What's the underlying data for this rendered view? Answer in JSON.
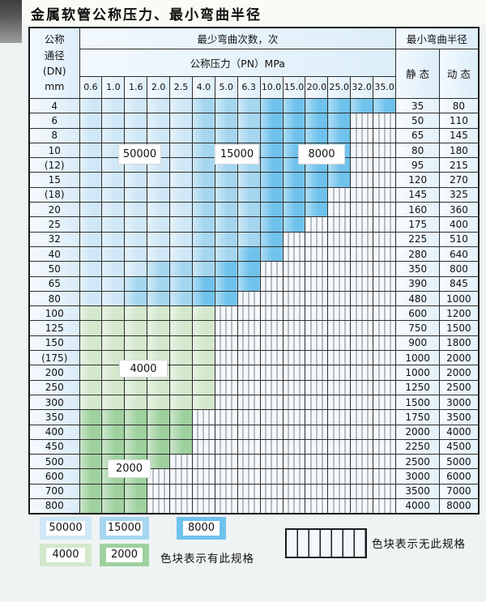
{
  "title": "金属软管公称压力、最小弯曲半径",
  "table": {
    "header": {
      "dn_lines": [
        "公称",
        "通径",
        "(DN)",
        "mm"
      ],
      "bend_cycles": "最少弯曲次数，次",
      "pressure_group": "公称压力（PN）MPa",
      "min_bend_radius": "最小弯曲半径",
      "static_label": "静 态",
      "dynamic_label": "动 态",
      "pressures": [
        "0.6",
        "1.0",
        "1.6",
        "2.0",
        "2.5",
        "4.0",
        "5.0",
        "6.3",
        "10.0",
        "15.0",
        "20.0",
        "25.0",
        "32.0",
        "35.0"
      ]
    },
    "rows": [
      {
        "dn": "4",
        "static": "35",
        "dynamic": "80",
        "cells": [
          "50000",
          "50000",
          "50000",
          "50000",
          "50000",
          "15000",
          "15000",
          "15000",
          "8000",
          "8000",
          "8000",
          "8000",
          "8000",
          "8000"
        ]
      },
      {
        "dn": "6",
        "static": "50",
        "dynamic": "110",
        "cells": [
          "50000",
          "50000",
          "50000",
          "50000",
          "50000",
          "15000",
          "15000",
          "15000",
          "8000",
          "8000",
          "8000",
          "8000",
          "none",
          "none"
        ]
      },
      {
        "dn": "8",
        "static": "65",
        "dynamic": "145",
        "cells": [
          "50000",
          "50000",
          "50000",
          "50000",
          "50000",
          "15000",
          "15000",
          "15000",
          "8000",
          "8000",
          "8000",
          "8000",
          "none",
          "none"
        ]
      },
      {
        "dn": "10",
        "static": "80",
        "dynamic": "180",
        "cells": [
          "50000",
          "50000",
          "50000",
          "50000",
          "50000",
          "15000",
          "15000",
          "15000",
          "8000",
          "8000",
          "8000",
          "8000",
          "none",
          "none"
        ]
      },
      {
        "dn": "(12)",
        "static": "95",
        "dynamic": "215",
        "cells": [
          "50000",
          "50000",
          "50000",
          "50000",
          "50000",
          "15000",
          "15000",
          "15000",
          "8000",
          "8000",
          "8000",
          "8000",
          "none",
          "none"
        ]
      },
      {
        "dn": "15",
        "static": "120",
        "dynamic": "270",
        "cells": [
          "50000",
          "50000",
          "50000",
          "50000",
          "50000",
          "15000",
          "15000",
          "15000",
          "8000",
          "8000",
          "8000",
          "8000",
          "none",
          "none"
        ]
      },
      {
        "dn": "(18)",
        "static": "145",
        "dynamic": "325",
        "cells": [
          "50000",
          "50000",
          "50000",
          "50000",
          "50000",
          "15000",
          "15000",
          "15000",
          "8000",
          "8000",
          "8000",
          "none",
          "none",
          "none"
        ]
      },
      {
        "dn": "20",
        "static": "160",
        "dynamic": "360",
        "cells": [
          "50000",
          "50000",
          "50000",
          "50000",
          "50000",
          "15000",
          "15000",
          "15000",
          "8000",
          "8000",
          "8000",
          "none",
          "none",
          "none"
        ]
      },
      {
        "dn": "25",
        "static": "175",
        "dynamic": "400",
        "cells": [
          "50000",
          "50000",
          "50000",
          "50000",
          "50000",
          "15000",
          "15000",
          "15000",
          "8000",
          "8000",
          "none",
          "none",
          "none",
          "none"
        ]
      },
      {
        "dn": "32",
        "static": "225",
        "dynamic": "510",
        "cells": [
          "50000",
          "50000",
          "50000",
          "50000",
          "50000",
          "15000",
          "15000",
          "15000",
          "8000",
          "none",
          "none",
          "none",
          "none",
          "none"
        ]
      },
      {
        "dn": "40",
        "static": "280",
        "dynamic": "640",
        "cells": [
          "50000",
          "50000",
          "50000",
          "50000",
          "50000",
          "15000",
          "15000",
          "8000",
          "8000",
          "none",
          "none",
          "none",
          "none",
          "none"
        ]
      },
      {
        "dn": "50",
        "static": "350",
        "dynamic": "800",
        "cells": [
          "50000",
          "50000",
          "50000",
          "15000",
          "15000",
          "15000",
          "8000",
          "8000",
          "none",
          "none",
          "none",
          "none",
          "none",
          "none"
        ]
      },
      {
        "dn": "65",
        "static": "390",
        "dynamic": "845",
        "cells": [
          "50000",
          "50000",
          "15000",
          "15000",
          "15000",
          "8000",
          "8000",
          "8000",
          "none",
          "none",
          "none",
          "none",
          "none",
          "none"
        ]
      },
      {
        "dn": "80",
        "static": "480",
        "dynamic": "1000",
        "cells": [
          "50000",
          "50000",
          "15000",
          "15000",
          "15000",
          "8000",
          "8000",
          "none",
          "none",
          "none",
          "none",
          "none",
          "none",
          "none"
        ]
      },
      {
        "dn": "100",
        "static": "600",
        "dynamic": "1200",
        "cells": [
          "4000",
          "4000",
          "4000",
          "4000",
          "4000",
          "4000",
          "none",
          "none",
          "none",
          "none",
          "none",
          "none",
          "none",
          "none"
        ]
      },
      {
        "dn": "125",
        "static": "750",
        "dynamic": "1500",
        "cells": [
          "4000",
          "4000",
          "4000",
          "4000",
          "4000",
          "4000",
          "none",
          "none",
          "none",
          "none",
          "none",
          "none",
          "none",
          "none"
        ]
      },
      {
        "dn": "150",
        "static": "900",
        "dynamic": "1800",
        "cells": [
          "4000",
          "4000",
          "4000",
          "4000",
          "4000",
          "4000",
          "none",
          "none",
          "none",
          "none",
          "none",
          "none",
          "none",
          "none"
        ]
      },
      {
        "dn": "(175)",
        "static": "1000",
        "dynamic": "2000",
        "cells": [
          "4000",
          "4000",
          "4000",
          "4000",
          "4000",
          "4000",
          "none",
          "none",
          "none",
          "none",
          "none",
          "none",
          "none",
          "none"
        ]
      },
      {
        "dn": "200",
        "static": "1000",
        "dynamic": "2000",
        "cells": [
          "4000",
          "4000",
          "4000",
          "4000",
          "4000",
          "4000",
          "none",
          "none",
          "none",
          "none",
          "none",
          "none",
          "none",
          "none"
        ]
      },
      {
        "dn": "250",
        "static": "1250",
        "dynamic": "2500",
        "cells": [
          "4000",
          "4000",
          "4000",
          "4000",
          "4000",
          "4000",
          "none",
          "none",
          "none",
          "none",
          "none",
          "none",
          "none",
          "none"
        ]
      },
      {
        "dn": "300",
        "static": "1500",
        "dynamic": "3000",
        "cells": [
          "4000",
          "4000",
          "4000",
          "4000",
          "4000",
          "4000",
          "none",
          "none",
          "none",
          "none",
          "none",
          "none",
          "none",
          "none"
        ]
      },
      {
        "dn": "350",
        "static": "1750",
        "dynamic": "3500",
        "cells": [
          "2000",
          "2000",
          "2000",
          "2000",
          "2000",
          "none",
          "none",
          "none",
          "none",
          "none",
          "none",
          "none",
          "none",
          "none"
        ]
      },
      {
        "dn": "400",
        "static": "2000",
        "dynamic": "4000",
        "cells": [
          "2000",
          "2000",
          "2000",
          "2000",
          "2000",
          "none",
          "none",
          "none",
          "none",
          "none",
          "none",
          "none",
          "none",
          "none"
        ]
      },
      {
        "dn": "450",
        "static": "2250",
        "dynamic": "4500",
        "cells": [
          "2000",
          "2000",
          "2000",
          "2000",
          "2000",
          "none",
          "none",
          "none",
          "none",
          "none",
          "none",
          "none",
          "none",
          "none"
        ]
      },
      {
        "dn": "500",
        "static": "2500",
        "dynamic": "5000",
        "cells": [
          "2000",
          "2000",
          "2000",
          "2000",
          "none",
          "none",
          "none",
          "none",
          "none",
          "none",
          "none",
          "none",
          "none",
          "none"
        ]
      },
      {
        "dn": "600",
        "static": "3000",
        "dynamic": "6000",
        "cells": [
          "2000",
          "2000",
          "2000",
          "none",
          "none",
          "none",
          "none",
          "none",
          "none",
          "none",
          "none",
          "none",
          "none",
          "none"
        ]
      },
      {
        "dn": "700",
        "static": "3500",
        "dynamic": "7000",
        "cells": [
          "2000",
          "2000",
          "2000",
          "none",
          "none",
          "none",
          "none",
          "none",
          "none",
          "none",
          "none",
          "none",
          "none",
          "none"
        ]
      },
      {
        "dn": "800",
        "static": "4000",
        "dynamic": "8000",
        "cells": [
          "2000",
          "2000",
          "2000",
          "none",
          "none",
          "none",
          "none",
          "none",
          "none",
          "none",
          "none",
          "none",
          "none",
          "none"
        ]
      }
    ]
  },
  "overlays": [
    {
      "label": "50000"
    },
    {
      "label": "15000"
    },
    {
      "label": "8000"
    },
    {
      "label": "4000"
    },
    {
      "label": "2000"
    }
  ],
  "legend": {
    "zone_colors": {
      "50000": "#cfe7f6",
      "15000": "#a5d6f0",
      "8000": "#6fc2ec",
      "4000": "#d3e8cc",
      "2000": "#9fd19f"
    },
    "swatches": [
      {
        "label": "50000"
      },
      {
        "label": "15000"
      },
      {
        "label": "8000"
      },
      {
        "label": "4000"
      },
      {
        "label": "2000"
      }
    ],
    "has_spec_note": "色块表示有此规格",
    "no_spec_note": "色块表示无此规格"
  }
}
